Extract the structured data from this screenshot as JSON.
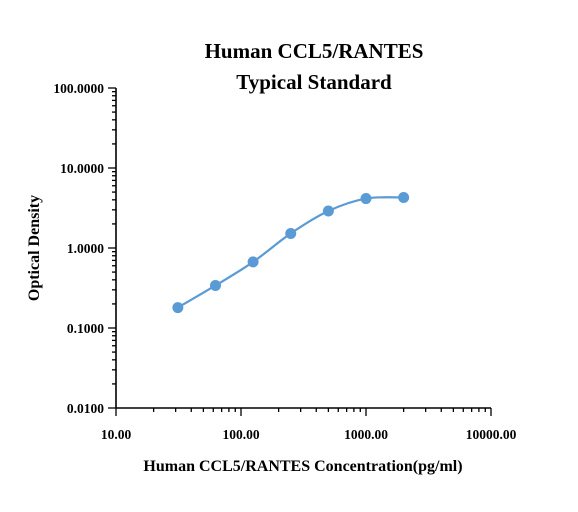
{
  "chart_data": {
    "type": "scatter",
    "title": [
      "Human CCL5/RANTES",
      "Typical Standard"
    ],
    "xlabel": "Human CCL5/RANTES Concentration(pg/ml)",
    "ylabel": "Optical Density",
    "xscale": "log",
    "yscale": "log",
    "xlim": [
      10,
      10000
    ],
    "ylim": [
      0.01,
      100
    ],
    "x_ticks": [
      10,
      100,
      1000,
      10000
    ],
    "x_tick_labels": [
      "10.00",
      "100.00",
      "1000.00",
      "10000.00"
    ],
    "y_ticks": [
      0.01,
      0.1,
      1,
      10,
      100
    ],
    "y_tick_labels": [
      "0.0100",
      "0.1000",
      "1.0000",
      "10.0000",
      "100.0000"
    ],
    "grid": false,
    "legend": "none",
    "series": [
      {
        "x": [
          31.25,
          62.5,
          125,
          250,
          500,
          1000,
          2000
        ],
        "y": [
          0.18,
          0.34,
          0.67,
          1.52,
          2.9,
          4.15,
          4.28
        ],
        "color": "#5b9bd5",
        "fit": "smooth"
      }
    ]
  }
}
